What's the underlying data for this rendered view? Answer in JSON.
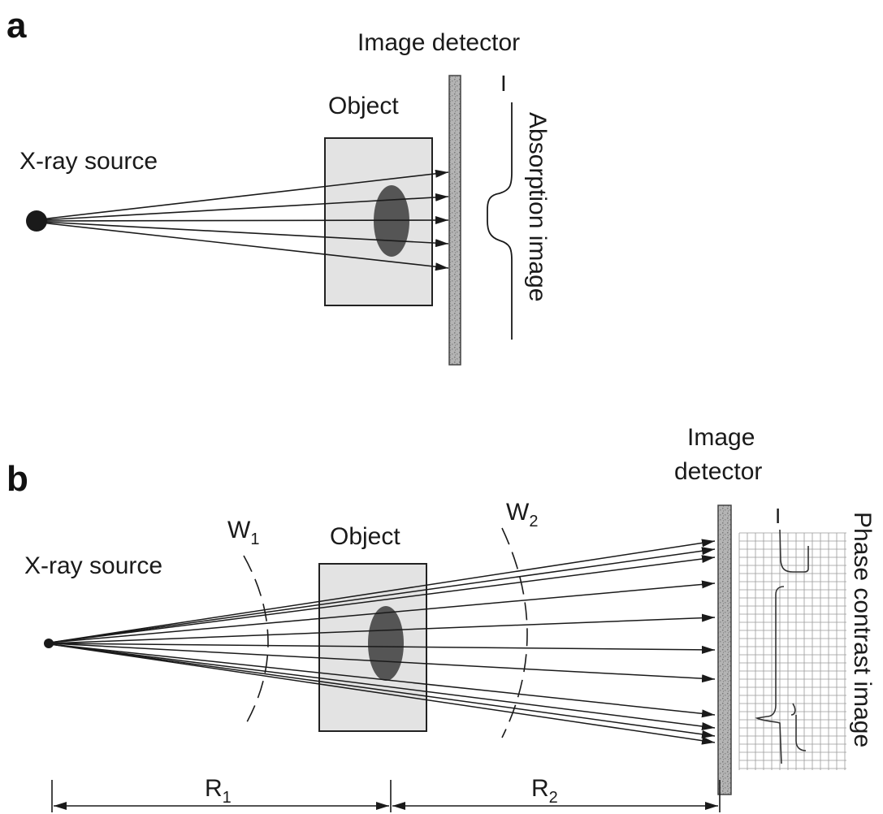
{
  "panel_a": {
    "letter": "a",
    "detector_label": "Image detector",
    "object_label": "Object",
    "source_label": "X-ray source",
    "intensity_label": "I",
    "image_label": "Absorption image"
  },
  "panel_b": {
    "letter": "b",
    "detector_label_line1": "Image",
    "detector_label_line2": "detector",
    "object_label": "Object",
    "source_label": "X-ray source",
    "wavefront1_label": "W",
    "wavefront1_sub": "1",
    "wavefront2_label": "W",
    "wavefront2_sub": "2",
    "intensity_label": "I",
    "image_label": "Phase contrast image",
    "distance1_label": "R",
    "distance1_sub": "1",
    "distance2_label": "R",
    "distance2_sub": "2"
  },
  "colors": {
    "object_fill": "#e3e3e3",
    "feature_fill": "#555555",
    "detector_fill": "#a8a8a8",
    "line": "#1a1a1a"
  }
}
